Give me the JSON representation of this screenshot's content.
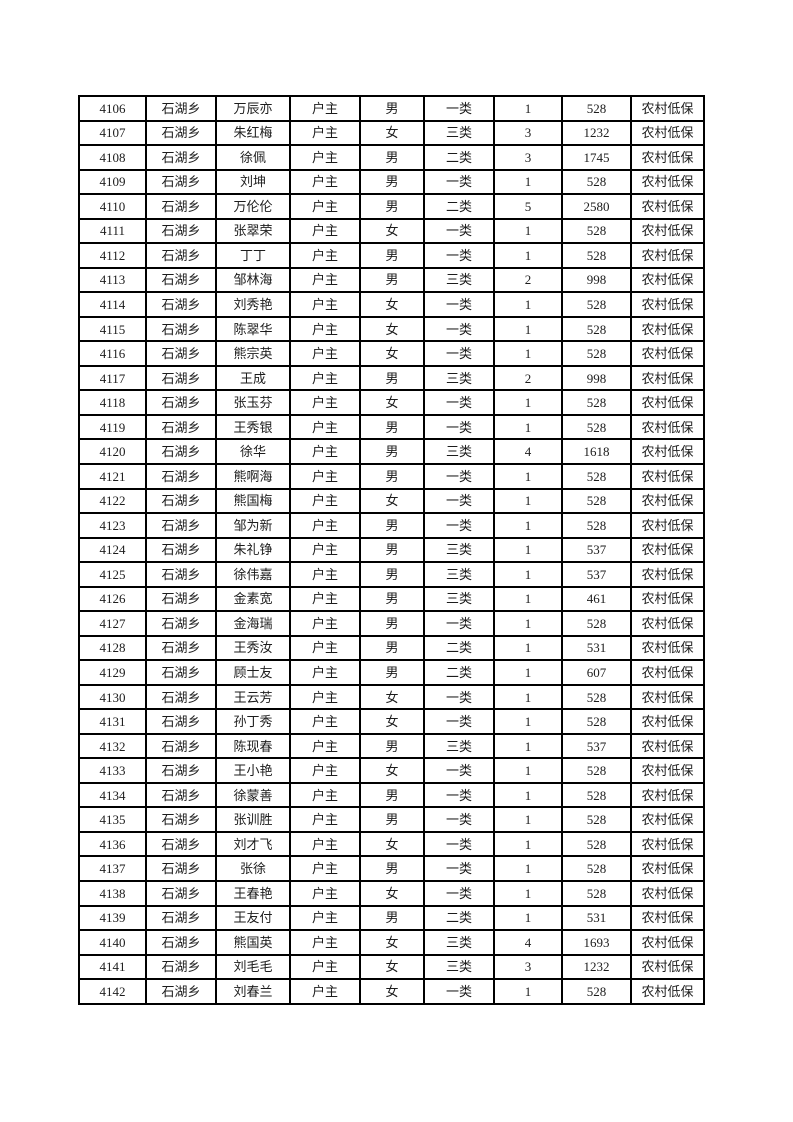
{
  "page": {
    "background_color": "#ffffff",
    "text_color": "#1c1c1c",
    "table_border_color": "#000000"
  },
  "table": {
    "rows": [
      [
        "4106",
        "石湖乡",
        "万辰亦",
        "户主",
        "男",
        "一类",
        "1",
        "528",
        "农村低保"
      ],
      [
        "4107",
        "石湖乡",
        "朱红梅",
        "户主",
        "女",
        "三类",
        "3",
        "1232",
        "农村低保"
      ],
      [
        "4108",
        "石湖乡",
        "徐佩",
        "户主",
        "男",
        "二类",
        "3",
        "1745",
        "农村低保"
      ],
      [
        "4109",
        "石湖乡",
        "刘坤",
        "户主",
        "男",
        "一类",
        "1",
        "528",
        "农村低保"
      ],
      [
        "4110",
        "石湖乡",
        "万伦伦",
        "户主",
        "男",
        "二类",
        "5",
        "2580",
        "农村低保"
      ],
      [
        "4111",
        "石湖乡",
        "张翠荣",
        "户主",
        "女",
        "一类",
        "1",
        "528",
        "农村低保"
      ],
      [
        "4112",
        "石湖乡",
        "丁丁",
        "户主",
        "男",
        "一类",
        "1",
        "528",
        "农村低保"
      ],
      [
        "4113",
        "石湖乡",
        "邹林海",
        "户主",
        "男",
        "三类",
        "2",
        "998",
        "农村低保"
      ],
      [
        "4114",
        "石湖乡",
        "刘秀艳",
        "户主",
        "女",
        "一类",
        "1",
        "528",
        "农村低保"
      ],
      [
        "4115",
        "石湖乡",
        "陈翠华",
        "户主",
        "女",
        "一类",
        "1",
        "528",
        "农村低保"
      ],
      [
        "4116",
        "石湖乡",
        "熊宗英",
        "户主",
        "女",
        "一类",
        "1",
        "528",
        "农村低保"
      ],
      [
        "4117",
        "石湖乡",
        "王成",
        "户主",
        "男",
        "三类",
        "2",
        "998",
        "农村低保"
      ],
      [
        "4118",
        "石湖乡",
        "张玉芬",
        "户主",
        "女",
        "一类",
        "1",
        "528",
        "农村低保"
      ],
      [
        "4119",
        "石湖乡",
        "王秀银",
        "户主",
        "男",
        "一类",
        "1",
        "528",
        "农村低保"
      ],
      [
        "4120",
        "石湖乡",
        "徐华",
        "户主",
        "男",
        "三类",
        "4",
        "1618",
        "农村低保"
      ],
      [
        "4121",
        "石湖乡",
        "熊啊海",
        "户主",
        "男",
        "一类",
        "1",
        "528",
        "农村低保"
      ],
      [
        "4122",
        "石湖乡",
        "熊国梅",
        "户主",
        "女",
        "一类",
        "1",
        "528",
        "农村低保"
      ],
      [
        "4123",
        "石湖乡",
        "邹为新",
        "户主",
        "男",
        "一类",
        "1",
        "528",
        "农村低保"
      ],
      [
        "4124",
        "石湖乡",
        "朱礼铮",
        "户主",
        "男",
        "三类",
        "1",
        "537",
        "农村低保"
      ],
      [
        "4125",
        "石湖乡",
        "徐伟嘉",
        "户主",
        "男",
        "三类",
        "1",
        "537",
        "农村低保"
      ],
      [
        "4126",
        "石湖乡",
        "金素宽",
        "户主",
        "男",
        "三类",
        "1",
        "461",
        "农村低保"
      ],
      [
        "4127",
        "石湖乡",
        "金海瑞",
        "户主",
        "男",
        "一类",
        "1",
        "528",
        "农村低保"
      ],
      [
        "4128",
        "石湖乡",
        "王秀汝",
        "户主",
        "男",
        "二类",
        "1",
        "531",
        "农村低保"
      ],
      [
        "4129",
        "石湖乡",
        "顾士友",
        "户主",
        "男",
        "二类",
        "1",
        "607",
        "农村低保"
      ],
      [
        "4130",
        "石湖乡",
        "王云芳",
        "户主",
        "女",
        "一类",
        "1",
        "528",
        "农村低保"
      ],
      [
        "4131",
        "石湖乡",
        "孙丁秀",
        "户主",
        "女",
        "一类",
        "1",
        "528",
        "农村低保"
      ],
      [
        "4132",
        "石湖乡",
        "陈现春",
        "户主",
        "男",
        "三类",
        "1",
        "537",
        "农村低保"
      ],
      [
        "4133",
        "石湖乡",
        "王小艳",
        "户主",
        "女",
        "一类",
        "1",
        "528",
        "农村低保"
      ],
      [
        "4134",
        "石湖乡",
        "徐蒙善",
        "户主",
        "男",
        "一类",
        "1",
        "528",
        "农村低保"
      ],
      [
        "4135",
        "石湖乡",
        "张训胜",
        "户主",
        "男",
        "一类",
        "1",
        "528",
        "农村低保"
      ],
      [
        "4136",
        "石湖乡",
        "刘才飞",
        "户主",
        "女",
        "一类",
        "1",
        "528",
        "农村低保"
      ],
      [
        "4137",
        "石湖乡",
        "张徐",
        "户主",
        "男",
        "一类",
        "1",
        "528",
        "农村低保"
      ],
      [
        "4138",
        "石湖乡",
        "王春艳",
        "户主",
        "女",
        "一类",
        "1",
        "528",
        "农村低保"
      ],
      [
        "4139",
        "石湖乡",
        "王友付",
        "户主",
        "男",
        "二类",
        "1",
        "531",
        "农村低保"
      ],
      [
        "4140",
        "石湖乡",
        "熊国英",
        "户主",
        "女",
        "三类",
        "4",
        "1693",
        "农村低保"
      ],
      [
        "4141",
        "石湖乡",
        "刘毛毛",
        "户主",
        "女",
        "三类",
        "3",
        "1232",
        "农村低保"
      ],
      [
        "4142",
        "石湖乡",
        "刘春兰",
        "户主",
        "女",
        "一类",
        "1",
        "528",
        "农村低保"
      ]
    ]
  }
}
